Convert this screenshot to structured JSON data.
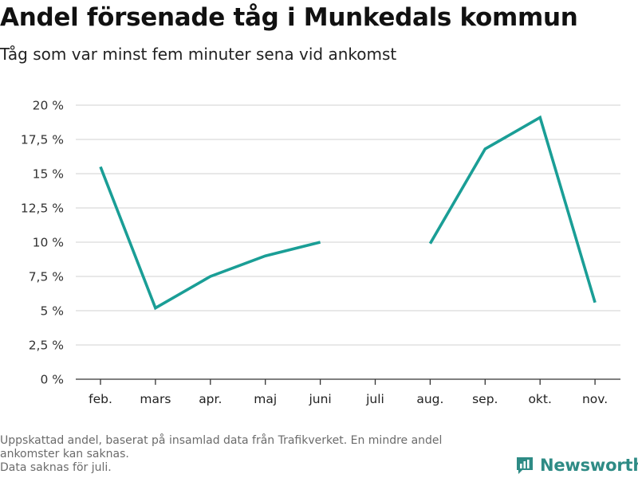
{
  "title": "Andel försenade tåg i Munkedals kommun",
  "subtitle": "Tåg som var minst fem minuter sena vid ankomst",
  "chart_data": {
    "type": "line",
    "categories": [
      "feb.",
      "mars",
      "apr.",
      "maj",
      "juni",
      "juli",
      "aug.",
      "sep.",
      "okt.",
      "nov."
    ],
    "series": [
      {
        "values": [
          15.5,
          5.2,
          7.5,
          9.0,
          10.0,
          null,
          9.9,
          16.8,
          19.1,
          5.6
        ]
      }
    ],
    "yticks": [
      0,
      2.5,
      5,
      7.5,
      10,
      12.5,
      15,
      17.5,
      20
    ],
    "ytick_labels": [
      "0 %",
      "2,5 %",
      "5 %",
      "7,5 %",
      "10 %",
      "12,5 %",
      "15 %",
      "17,5 %",
      "20 %"
    ],
    "ylim": [
      0,
      20
    ],
    "grid": true,
    "line_color": "#1a9e96"
  },
  "footnote": {
    "line1": "Uppskattad andel, baserat på insamlad data från Trafikverket. En mindre andel",
    "line2": "ankomster kan saknas.",
    "line3": "Data saknas för juli."
  },
  "brand": {
    "name": "Newsworthy",
    "icon": "bar-chart-logo-icon",
    "color": "#2e8b85"
  }
}
